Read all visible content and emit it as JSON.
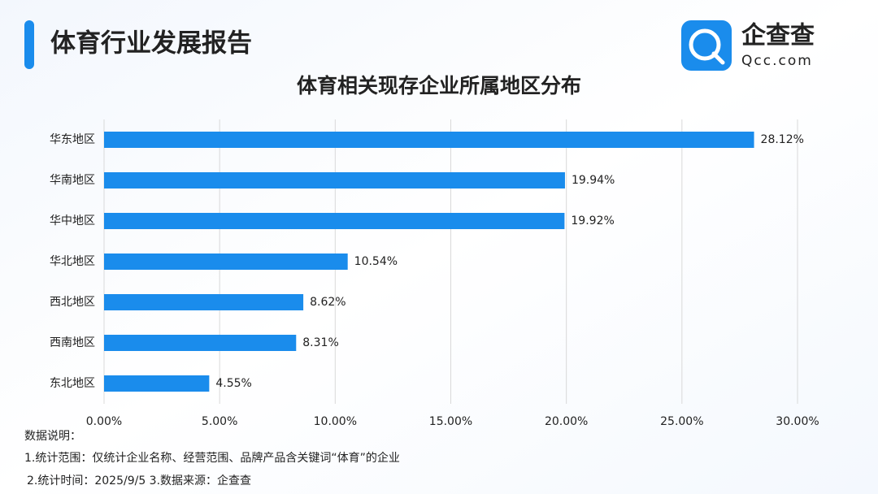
{
  "header": {
    "title": "体育行业发展报告"
  },
  "logo": {
    "name": "企查查",
    "domain": "Qcc.com"
  },
  "chart_data": {
    "type": "hbar",
    "title": "体育相关现存企业所属地区分布",
    "categories": [
      "华东地区",
      "华南地区",
      "华中地区",
      "华北地区",
      "西北地区",
      "西南地区",
      "东北地区"
    ],
    "values": [
      28.12,
      19.94,
      19.92,
      10.54,
      8.62,
      8.31,
      4.55
    ],
    "value_labels": [
      "28.12%",
      "19.94%",
      "19.92%",
      "10.54%",
      "8.62%",
      "8.31%",
      "4.55%"
    ],
    "color": "#1a8cec",
    "xlim": [
      0,
      30
    ],
    "xticks": [
      {
        "value": 0,
        "label": "0.00%"
      },
      {
        "value": 5,
        "label": "5.00%"
      },
      {
        "value": 10,
        "label": "10.00%"
      },
      {
        "value": 15,
        "label": "15.00%"
      },
      {
        "value": 20,
        "label": "20.00%"
      },
      {
        "value": 25,
        "label": "25.00%"
      },
      {
        "value": 30,
        "label": "30.00%"
      }
    ],
    "grid": true
  },
  "notes": {
    "heading": "数据说明：",
    "lines": [
      "1.统计范围：仅统计企业名称、经营范围、品牌产品含关键词“体育”的企业",
      "2.统计时间：2025/9/5  3.数据来源：企查查"
    ]
  }
}
